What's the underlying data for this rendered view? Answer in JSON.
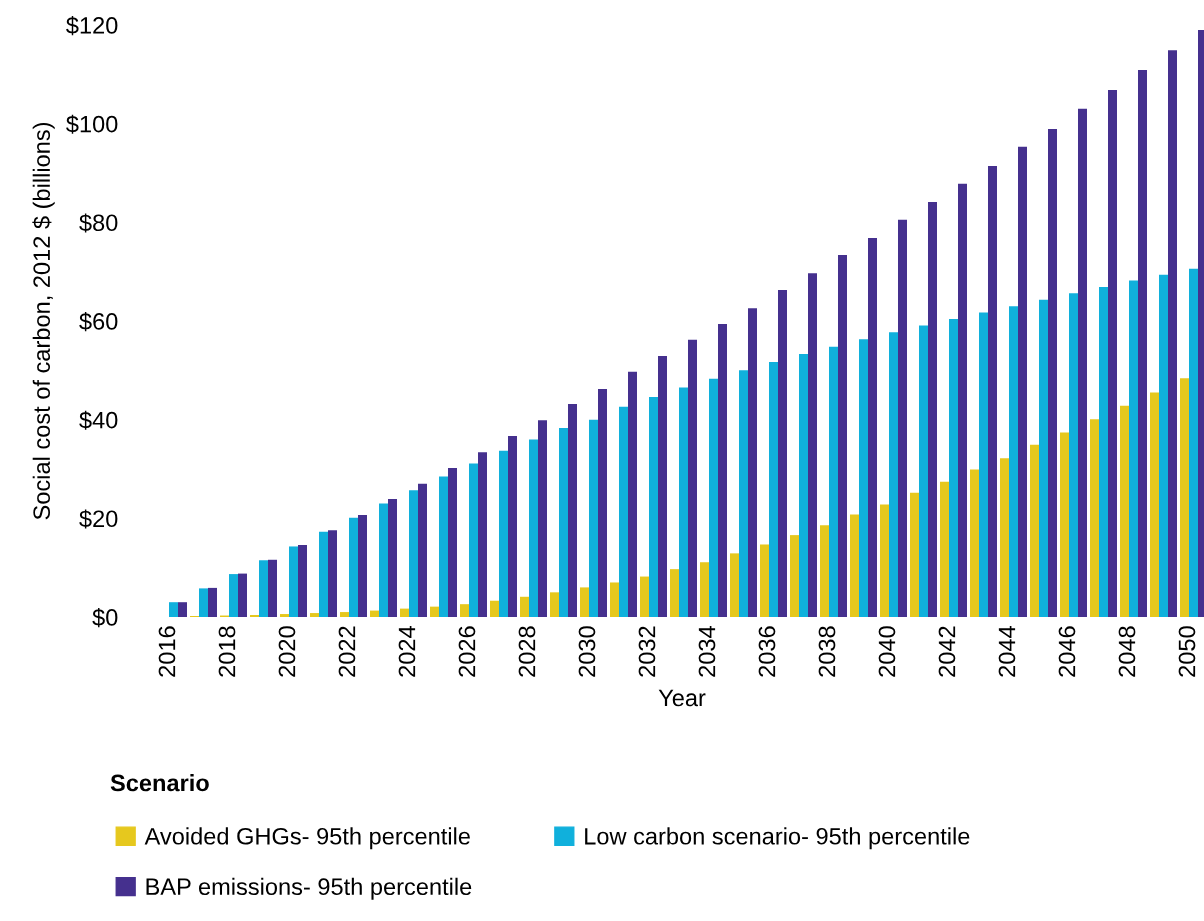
{
  "chart_data": {
    "type": "bar",
    "xlabel": "Year",
    "ylabel": "Social cost of carbon, 2012 $ (billions)",
    "legend_title": "Scenario",
    "categories": [
      "2016",
      null,
      "2018",
      null,
      "2020",
      null,
      "2022",
      null,
      "2024",
      null,
      "2026",
      null,
      "2028",
      null,
      "2030",
      null,
      "2032",
      null,
      "2034",
      null,
      "2036",
      null,
      "2038",
      null,
      "2040",
      null,
      "2042",
      null,
      "2044",
      null,
      "2046",
      null,
      "2048",
      null,
      "2050"
    ],
    "series": [
      {
        "name": "Avoided GHGs- 95th percentile",
        "color": "#e6c81e",
        "values": [
          null,
          0.2,
          0.3,
          0.4,
          0.6,
          0.8,
          1.0,
          1.3,
          1.7,
          2.1,
          2.6,
          3.3,
          4.1,
          5.0,
          6.0,
          7.0,
          8.2,
          9.7,
          11.1,
          12.9,
          14.7,
          16.6,
          18.6,
          20.8,
          22.8,
          25.2,
          27.4,
          29.9,
          32.2,
          34.9,
          37.4,
          40.1,
          42.8,
          45.5,
          48.4
        ]
      },
      {
        "name": "Low carbon scenario- 95th percentile",
        "color": "#10b0dc",
        "values": [
          3.0,
          5.8,
          8.7,
          11.5,
          14.3,
          17.3,
          20.1,
          23.0,
          25.7,
          28.5,
          31.1,
          33.7,
          36.0,
          38.3,
          40.0,
          42.6,
          44.6,
          46.5,
          48.3,
          50.0,
          51.7,
          53.3,
          54.8,
          56.3,
          57.7,
          59.1,
          60.4,
          61.7,
          63.0,
          64.3,
          65.6,
          66.9,
          68.2,
          69.4,
          70.6
        ]
      },
      {
        "name": "BAP emissions- 95th percentile",
        "color": "#45308e",
        "values": [
          3.0,
          5.9,
          8.8,
          11.6,
          14.6,
          17.6,
          20.7,
          23.9,
          27.0,
          30.2,
          33.4,
          36.7,
          39.9,
          43.2,
          46.2,
          49.7,
          52.9,
          56.2,
          59.4,
          62.6,
          66.3,
          69.7,
          73.4,
          76.8,
          80.5,
          84.1,
          87.8,
          91.4,
          95.3,
          98.9,
          103.0,
          106.8,
          110.9,
          114.9,
          119.0
        ]
      }
    ],
    "ylim": [
      0,
      120
    ],
    "yticks": [
      {
        "value": 0,
        "label": "$0"
      },
      {
        "value": 20,
        "label": "$20"
      },
      {
        "value": 40,
        "label": "$40"
      },
      {
        "value": 60,
        "label": "$60"
      },
      {
        "value": 80,
        "label": "$80"
      },
      {
        "value": 100,
        "label": "$100"
      },
      {
        "value": 120,
        "label": "$120"
      }
    ],
    "grid": false,
    "legend": "bottom"
  }
}
